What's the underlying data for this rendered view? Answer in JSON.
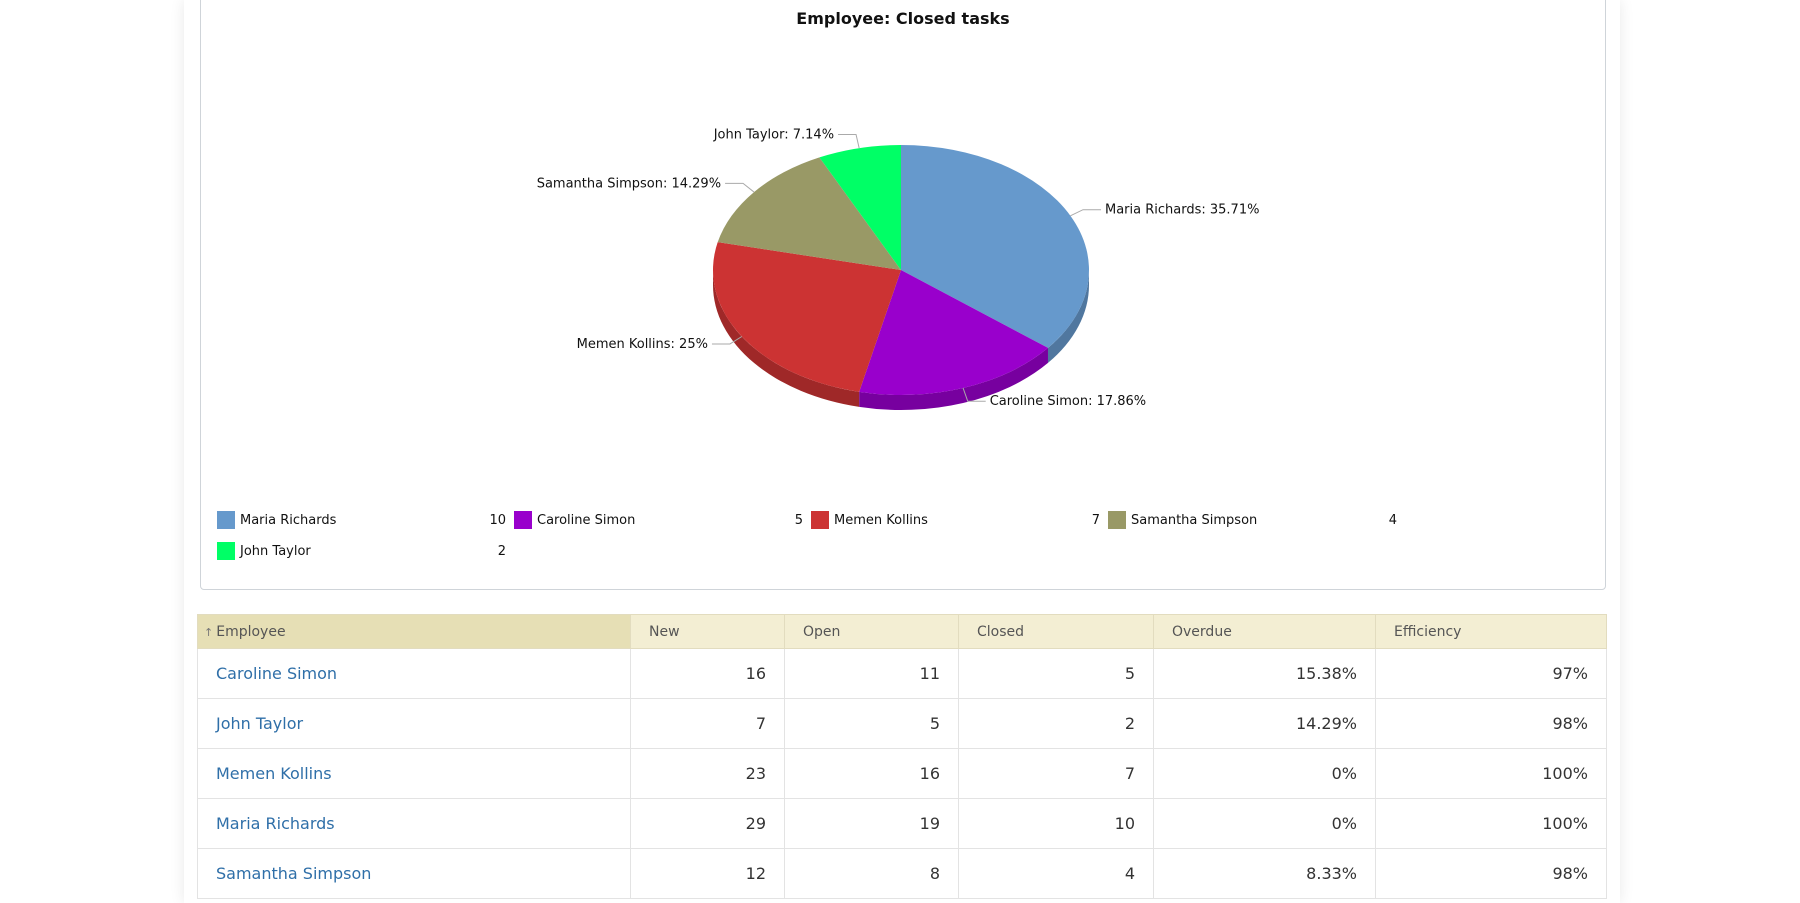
{
  "chart_data": {
    "type": "pie",
    "title": "Employee: Closed tasks",
    "slices": [
      {
        "name": "Maria Richards",
        "value": 10,
        "percent_label": "Maria Richards: 35.71%",
        "color": "#6699cc"
      },
      {
        "name": "Caroline Simon",
        "value": 5,
        "percent_label": "Caroline Simon: 17.86%",
        "color": "#9900cc"
      },
      {
        "name": "Memen Kollins",
        "value": 7,
        "percent_label": "Memen Kollins: 25%",
        "color": "#cc3333"
      },
      {
        "name": "Samantha Simpson",
        "value": 4,
        "percent_label": "Samantha Simpson: 14.29%",
        "color": "#999966"
      },
      {
        "name": "John Taylor",
        "value": 2,
        "percent_label": "John Taylor: 7.14%",
        "color": "#00ff66"
      }
    ],
    "legend": [
      {
        "name": "Maria Richards",
        "value": "10"
      },
      {
        "name": "Caroline Simon",
        "value": "5"
      },
      {
        "name": "Memen Kollins",
        "value": "7"
      },
      {
        "name": "Samantha Simpson",
        "value": "4"
      },
      {
        "name": "John Taylor",
        "value": "2"
      }
    ]
  },
  "table": {
    "columns": [
      "Employee",
      "New",
      "Open",
      "Closed",
      "Overdue",
      "Efficiency"
    ],
    "sort_icon": "sort-up-arrow-icon",
    "rows": [
      {
        "employee": "Caroline Simon",
        "new": "16",
        "open": "11",
        "closed": "5",
        "overdue": "15.38%",
        "efficiency": "97%"
      },
      {
        "employee": "John Taylor",
        "new": "7",
        "open": "5",
        "closed": "2",
        "overdue": "14.29%",
        "efficiency": "98%"
      },
      {
        "employee": "Memen Kollins",
        "new": "23",
        "open": "16",
        "closed": "7",
        "overdue": "0%",
        "efficiency": "100%"
      },
      {
        "employee": "Maria Richards",
        "new": "29",
        "open": "19",
        "closed": "10",
        "overdue": "0%",
        "efficiency": "100%"
      },
      {
        "employee": "Samantha Simpson",
        "new": "12",
        "open": "8",
        "closed": "4",
        "overdue": "8.33%",
        "efficiency": "98%"
      }
    ]
  }
}
